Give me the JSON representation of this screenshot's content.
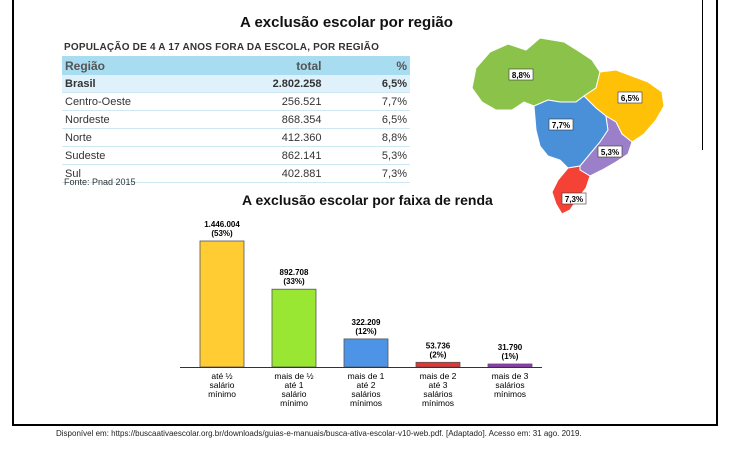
{
  "title_region": "A exclusão escolar por região",
  "table": {
    "heading": "POPULAÇÃO DE 4 A 17 ANOS FORA DA ESCOLA, POR REGIÃO",
    "columns": [
      "Região",
      "total",
      "%"
    ],
    "rows": [
      {
        "region": "Brasil",
        "total": "2.802.258",
        "pct": "6,5%"
      },
      {
        "region": "Centro-Oeste",
        "total": "256.521",
        "pct": "7,7%"
      },
      {
        "region": "Nordeste",
        "total": "868.354",
        "pct": "6,5%"
      },
      {
        "region": "Norte",
        "total": "412.360",
        "pct": "8,8%"
      },
      {
        "region": "Sudeste",
        "total": "862.141",
        "pct": "5,3%"
      },
      {
        "region": "Sul",
        "total": "402.881",
        "pct": "7,3%"
      }
    ],
    "source": "Fonte: Pnad 2015"
  },
  "map": {
    "labels": [
      {
        "region": "Norte",
        "text": "8,8%",
        "color": "#8bc34a"
      },
      {
        "region": "Nordeste",
        "text": "6,5%",
        "color": "#ffc107"
      },
      {
        "region": "Centro-Oeste",
        "text": "7,7%",
        "color": "#4a90d9"
      },
      {
        "region": "Sudeste",
        "text": "5,3%",
        "color": "#9c7fc9"
      },
      {
        "region": "Sul",
        "text": "7,3%",
        "color": "#f44336"
      }
    ]
  },
  "title_income": "A exclusão escolar por faixa de renda",
  "chart_data": {
    "type": "bar",
    "title": "A exclusão escolar por faixa de renda",
    "categories": [
      [
        "até ½",
        "salário",
        "mínimo"
      ],
      [
        "mais de ½",
        "até 1",
        "salário",
        "mínimo"
      ],
      [
        "mais de 1",
        "até 2",
        "salários",
        "mínimos"
      ],
      [
        "mais de 2",
        "até 3",
        "salários",
        "mínimos"
      ],
      [
        "mais de 3",
        "salários",
        "mínimos"
      ]
    ],
    "values": [
      1446004,
      892708,
      322209,
      53736,
      31790
    ],
    "value_labels": [
      "1.446.004",
      "892.708",
      "322.209",
      "53.736",
      "31.790"
    ],
    "pct_labels": [
      "(53%)",
      "(33%)",
      "(12%)",
      "(2%)",
      "(1%)"
    ],
    "colors": [
      "#ffcc33",
      "#99e633",
      "#4d94e6",
      "#e63333",
      "#9933cc"
    ],
    "ylim": [
      0,
      1446004
    ]
  },
  "credit": "Disponível em: https://buscaativaescolar.org.br/downloads/guias-e-manuais/busca-ativa-escolar-v10-web.pdf. [Adaptado]. Acesso em: 31 ago. 2019."
}
